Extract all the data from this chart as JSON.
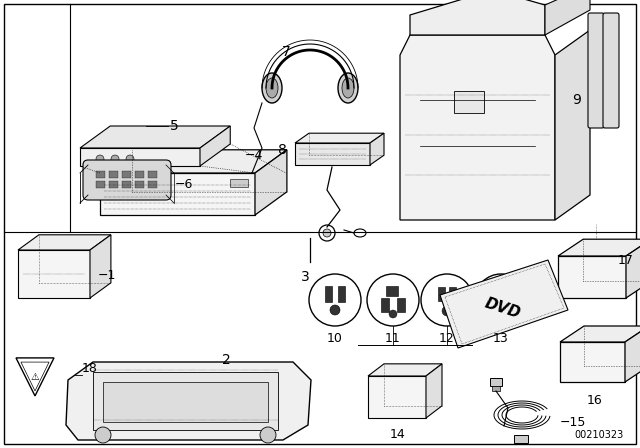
{
  "background_color": "#ffffff",
  "line_color": "#000000",
  "text_color": "#000000",
  "part_number": "00210323",
  "figsize": [
    6.4,
    4.48
  ],
  "dpi": 100
}
